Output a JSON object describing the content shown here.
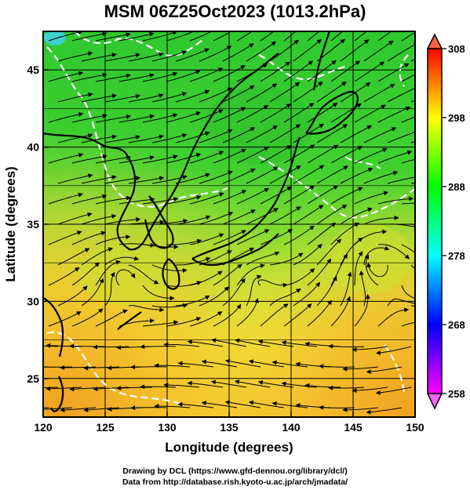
{
  "title": "MSM 06Z25Oct2023 (1013.2hPa)",
  "footer": {
    "line1": "Drawing by DCL (https://www.gfd-dennou.org/library/dcl/)",
    "line2": "Data from http://database.rish.kyoto-u.ac.jp/arch/jmadata/"
  },
  "map": {
    "xlabel": "Longitude (degrees)",
    "ylabel": "Latitude  (degrees)",
    "lon_range": [
      120,
      150
    ],
    "lat_range": [
      22.5,
      47.5
    ],
    "lon_ticks": [
      {
        "value": 120,
        "label": "120"
      },
      {
        "value": 125,
        "label": "125"
      },
      {
        "value": 130,
        "label": "130"
      },
      {
        "value": 135,
        "label": "135"
      },
      {
        "value": 140,
        "label": "140"
      },
      {
        "value": 145,
        "label": "145"
      },
      {
        "value": 150,
        "label": "150"
      }
    ],
    "lat_ticks": [
      {
        "value": 25,
        "label": "25"
      },
      {
        "value": 30,
        "label": "30"
      },
      {
        "value": 35,
        "label": "35"
      },
      {
        "value": 40,
        "label": "40"
      },
      {
        "value": 45,
        "label": "45"
      }
    ],
    "field": "temperature (K) shaded, wind streamlines",
    "grid": true
  },
  "colorbar": {
    "range": [
      258,
      308
    ],
    "ticks": [
      {
        "value": 258,
        "label": "258"
      },
      {
        "value": 268,
        "label": "268"
      },
      {
        "value": 278,
        "label": "278"
      },
      {
        "value": 288,
        "label": "288"
      },
      {
        "value": 298,
        "label": "298"
      },
      {
        "value": 308,
        "label": "308"
      }
    ],
    "colors": [
      "#ff00ff",
      "#0000ff",
      "#00ffff",
      "#00ff00",
      "#ffff00",
      "#ff0000"
    ]
  }
}
